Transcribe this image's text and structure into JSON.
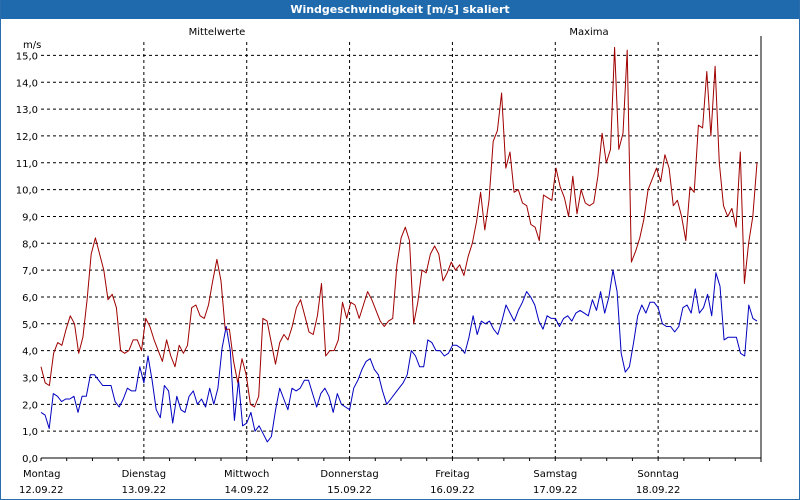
{
  "window": {
    "title": "Windgeschwindigkeit [m/s] skaliert"
  },
  "colors": {
    "titlebar": "#1f6aad",
    "mean": "#0000c0",
    "max": "#a00000",
    "grid": "#000000"
  },
  "chart_data": {
    "type": "line",
    "title": "Windgeschwindigkeit [m/s] skaliert",
    "ylabel": "m/s",
    "ylim": [
      0,
      15.5
    ],
    "yticks": [
      "0,0",
      "1,0",
      "2,0",
      "3,0",
      "4,0",
      "5,0",
      "6,0",
      "7,0",
      "8,0",
      "9,0",
      "10,0",
      "11,0",
      "12,0",
      "13,0",
      "14,0",
      "15,0"
    ],
    "grid": true,
    "day_labels": [
      {
        "day": "Montag",
        "date": "12.09.22"
      },
      {
        "day": "Dienstag",
        "date": "13.09.22"
      },
      {
        "day": "Mittwoch",
        "date": "14.09.22"
      },
      {
        "day": "Donnerstag",
        "date": "15.09.22"
      },
      {
        "day": "Freitag",
        "date": "16.09.22"
      },
      {
        "day": "Samstag",
        "date": "17.09.22"
      },
      {
        "day": "Sonntag",
        "date": "18.09.22"
      }
    ],
    "x_start": "12.09.22 00:00",
    "x_end": "19.09.22 00:00",
    "series": [
      {
        "name": "Mittelwerte",
        "color": "#0000c0",
        "values": [
          1.7,
          1.6,
          1.1,
          2.4,
          2.3,
          2.1,
          2.2,
          2.2,
          2.3,
          1.7,
          2.3,
          2.3,
          3.1,
          3.1,
          2.9,
          2.7,
          2.7,
          2.7,
          2.1,
          1.9,
          2.2,
          2.6,
          2.5,
          2.5,
          3.4,
          2.8,
          3.8,
          2.9,
          1.8,
          1.5,
          2.7,
          2.5,
          1.3,
          2.3,
          1.8,
          1.7,
          2.3,
          2.5,
          2.0,
          2.2,
          1.9,
          2.6,
          2.0,
          2.6,
          4.1,
          4.9,
          4.0,
          1.4,
          2.9,
          1.2,
          1.3,
          1.7,
          1.0,
          1.2,
          0.9,
          0.6,
          0.8,
          1.8,
          2.6,
          2.2,
          1.8,
          2.6,
          2.5,
          2.6,
          2.9,
          2.9,
          2.4,
          1.9,
          2.4,
          2.6,
          2.3,
          1.7,
          2.4,
          2.0,
          1.9,
          1.8,
          2.6,
          2.9,
          3.3,
          3.6,
          3.7,
          3.3,
          3.1,
          2.5,
          2.0,
          2.2,
          2.4,
          2.6,
          2.8,
          3.1,
          4.0,
          3.8,
          3.4,
          3.4,
          4.4,
          4.3,
          4.0,
          4.0,
          3.8,
          3.9,
          4.2,
          4.2,
          4.1,
          3.9,
          4.5,
          5.3,
          4.6,
          5.1,
          5.0,
          5.1,
          4.8,
          4.6,
          5.1,
          5.7,
          5.4,
          5.1,
          5.5,
          5.8,
          6.2,
          6.0,
          5.7,
          5.1,
          4.8,
          5.3,
          5.2,
          5.2,
          4.9,
          5.2,
          5.3,
          5.1,
          5.4,
          5.5,
          5.4,
          5.3,
          5.9,
          5.5,
          6.2,
          5.4,
          6.0,
          7.0,
          6.2,
          3.9,
          3.2,
          3.4,
          4.3,
          5.3,
          5.7,
          5.4,
          5.8,
          5.8,
          5.6,
          5.0,
          4.9,
          4.9,
          4.7,
          4.9,
          5.6,
          5.7,
          5.4,
          6.3,
          5.4,
          5.6,
          6.1,
          5.3,
          6.9,
          6.4,
          4.4,
          4.5,
          4.5,
          4.5,
          3.9,
          3.8,
          5.7,
          5.2,
          5.1
        ]
      },
      {
        "name": "Maxima",
        "color": "#a00000",
        "values": [
          3.4,
          2.8,
          2.7,
          3.9,
          4.3,
          4.2,
          4.8,
          5.3,
          5.0,
          3.9,
          4.5,
          5.9,
          7.6,
          8.2,
          7.6,
          7.0,
          5.9,
          6.1,
          5.6,
          4.0,
          3.9,
          4.0,
          4.4,
          4.4,
          4.0,
          5.2,
          4.9,
          4.4,
          4.0,
          3.6,
          4.4,
          3.8,
          3.4,
          4.2,
          3.9,
          4.2,
          5.6,
          5.7,
          5.3,
          5.2,
          5.7,
          6.6,
          7.4,
          6.6,
          4.8,
          4.8,
          3.6,
          2.8,
          3.7,
          3.1,
          2.0,
          1.9,
          2.3,
          5.2,
          5.1,
          4.3,
          3.5,
          4.3,
          4.6,
          4.4,
          4.9,
          5.6,
          5.9,
          5.3,
          4.7,
          4.6,
          5.3,
          6.5,
          3.8,
          4.0,
          4.0,
          4.4,
          5.8,
          5.2,
          5.8,
          5.7,
          5.2,
          5.7,
          6.2,
          5.9,
          5.5,
          5.1,
          4.9,
          5.1,
          5.2,
          7.2,
          8.2,
          8.6,
          8.1,
          5.0,
          5.8,
          7.0,
          6.9,
          7.6,
          7.9,
          7.6,
          6.6,
          6.9,
          7.3,
          7.0,
          7.2,
          6.8,
          7.5,
          8.0,
          8.8,
          9.9,
          8.5,
          9.6,
          11.8,
          12.2,
          13.6,
          10.8,
          11.4,
          9.9,
          10.0,
          9.5,
          9.4,
          8.7,
          8.6,
          8.1,
          9.8,
          9.7,
          9.6,
          10.8,
          10.1,
          9.7,
          9.0,
          10.5,
          9.1,
          10.0,
          9.5,
          9.4,
          9.5,
          10.5,
          12.1,
          11.0,
          11.5,
          15.3,
          11.5,
          12.1,
          15.2,
          7.3,
          7.7,
          8.2,
          8.9,
          10.0,
          10.4,
          10.8,
          10.3,
          11.3,
          10.8,
          9.4,
          9.6,
          9.0,
          8.1,
          10.1,
          9.9,
          12.4,
          12.3,
          14.4,
          12.0,
          14.6,
          11.0,
          9.4,
          9.0,
          9.3,
          8.6,
          11.4,
          6.5,
          8.0,
          9.0,
          11.0
        ]
      }
    ]
  }
}
